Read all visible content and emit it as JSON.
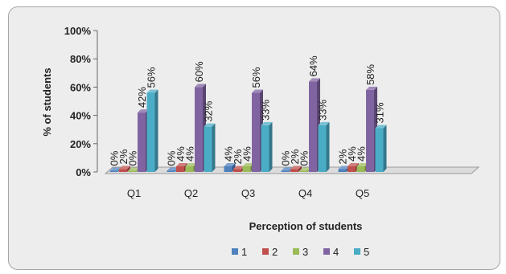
{
  "chart_data": {
    "type": "bar",
    "title": "",
    "xlabel": "Perception of students",
    "ylabel": "% of students",
    "categories": [
      "Q1",
      "Q2",
      "Q3",
      "Q4",
      "Q5"
    ],
    "ylim": [
      0,
      100
    ],
    "yticks": [
      0,
      20,
      40,
      60,
      80,
      100
    ],
    "ytick_suffix": "%",
    "grid": false,
    "legend": "bottom",
    "series": [
      {
        "name": "1",
        "color": "#4f81bd",
        "values": [
          0,
          0,
          4,
          0,
          2
        ]
      },
      {
        "name": "2",
        "color": "#c0504d",
        "values": [
          2,
          4,
          2,
          2,
          4
        ]
      },
      {
        "name": "3",
        "color": "#9bbb59",
        "values": [
          0,
          4,
          4,
          0,
          4
        ]
      },
      {
        "name": "4",
        "color": "#8064a2",
        "values": [
          42,
          60,
          56,
          64,
          58
        ]
      },
      {
        "name": "5",
        "color": "#4bacc6",
        "values": [
          56,
          32,
          33,
          33,
          31
        ]
      }
    ]
  }
}
